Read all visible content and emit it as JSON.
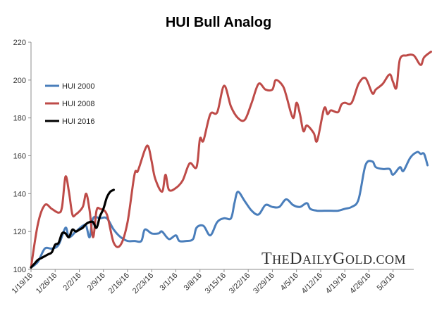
{
  "chart_data": {
    "type": "line",
    "title": "HUI Bull Analog",
    "xlabel": "",
    "ylabel": "",
    "ylim": [
      100,
      220
    ],
    "yticks": [
      100,
      120,
      140,
      160,
      180,
      200,
      220
    ],
    "xlim": [
      0,
      111
    ],
    "xticks": [
      {
        "label": "1/19/16",
        "x": 0
      },
      {
        "label": "1/26/16",
        "x": 7
      },
      {
        "label": "2/2/16",
        "x": 14
      },
      {
        "label": "2/9/16",
        "x": 21
      },
      {
        "label": "2/16/16",
        "x": 28
      },
      {
        "label": "2/23/16",
        "x": 35
      },
      {
        "label": "3/1/16",
        "x": 42
      },
      {
        "label": "3/8/16",
        "x": 49
      },
      {
        "label": "3/15/16",
        "x": 56
      },
      {
        "label": "3/22/16",
        "x": 63
      },
      {
        "label": "3/29/16",
        "x": 70
      },
      {
        "label": "4/5/16",
        "x": 77
      },
      {
        "label": "4/12/16",
        "x": 84
      },
      {
        "label": "4/19/16",
        "x": 91
      },
      {
        "label": "4/26/16",
        "x": 98
      },
      {
        "label": "5/3/16",
        "x": 105
      }
    ],
    "legend_position": "left",
    "series": [
      {
        "name": "HUI 2000",
        "color": "#4a7ebb",
        "points": [
          [
            0,
            101
          ],
          [
            2,
            104
          ],
          [
            4,
            111
          ],
          [
            6,
            111
          ],
          [
            8,
            113
          ],
          [
            10,
            122
          ],
          [
            11,
            117
          ],
          [
            13,
            120
          ],
          [
            15,
            123
          ],
          [
            16,
            123
          ],
          [
            17,
            117
          ],
          [
            18,
            127
          ],
          [
            20,
            127
          ],
          [
            22,
            127
          ],
          [
            24,
            121
          ],
          [
            26,
            117
          ],
          [
            28,
            115
          ],
          [
            30,
            115
          ],
          [
            32,
            115
          ],
          [
            33,
            121
          ],
          [
            35,
            119
          ],
          [
            37,
            119
          ],
          [
            38,
            120
          ],
          [
            40,
            116
          ],
          [
            42,
            118
          ],
          [
            43,
            115
          ],
          [
            45,
            115
          ],
          [
            47,
            116
          ],
          [
            48,
            122
          ],
          [
            50,
            123
          ],
          [
            52,
            118
          ],
          [
            54,
            125
          ],
          [
            56,
            127
          ],
          [
            58,
            127
          ],
          [
            59,
            135
          ],
          [
            60,
            141
          ],
          [
            62,
            136
          ],
          [
            64,
            131
          ],
          [
            66,
            129
          ],
          [
            68,
            134
          ],
          [
            70,
            133
          ],
          [
            72,
            133
          ],
          [
            74,
            137
          ],
          [
            76,
            134
          ],
          [
            78,
            133
          ],
          [
            80,
            135
          ],
          [
            81,
            132
          ],
          [
            83,
            131
          ],
          [
            85,
            131
          ],
          [
            87,
            131
          ],
          [
            89,
            131
          ],
          [
            91,
            132
          ],
          [
            93,
            133
          ],
          [
            95,
            137
          ],
          [
            97,
            155
          ],
          [
            99,
            157
          ],
          [
            100,
            154
          ],
          [
            102,
            153
          ],
          [
            104,
            153
          ],
          [
            105,
            150
          ],
          [
            107,
            154
          ],
          [
            108,
            152
          ],
          [
            110,
            159
          ],
          [
            112,
            162
          ],
          [
            113,
            161
          ],
          [
            114,
            161
          ],
          [
            115,
            155
          ]
        ]
      },
      {
        "name": "HUI 2008",
        "color": "#be4b48",
        "points": [
          [
            0,
            101
          ],
          [
            2,
            124
          ],
          [
            4,
            134
          ],
          [
            6,
            132
          ],
          [
            8,
            130
          ],
          [
            9,
            133
          ],
          [
            10,
            149
          ],
          [
            11,
            141
          ],
          [
            12,
            129
          ],
          [
            13,
            129
          ],
          [
            15,
            133
          ],
          [
            16,
            140
          ],
          [
            17,
            131
          ],
          [
            18,
            117
          ],
          [
            19,
            131
          ],
          [
            20,
            132
          ],
          [
            22,
            129
          ],
          [
            24,
            114
          ],
          [
            26,
            113
          ],
          [
            28,
            125
          ],
          [
            30,
            150
          ],
          [
            31,
            152
          ],
          [
            33,
            163
          ],
          [
            34,
            165
          ],
          [
            35,
            157
          ],
          [
            36,
            148
          ],
          [
            38,
            141
          ],
          [
            39,
            150
          ],
          [
            40,
            142
          ],
          [
            42,
            143
          ],
          [
            44,
            147
          ],
          [
            46,
            156
          ],
          [
            48,
            154
          ],
          [
            49,
            169
          ],
          [
            50,
            168
          ],
          [
            52,
            182
          ],
          [
            54,
            183
          ],
          [
            56,
            197
          ],
          [
            58,
            186
          ],
          [
            60,
            180
          ],
          [
            62,
            179
          ],
          [
            64,
            188
          ],
          [
            66,
            198
          ],
          [
            68,
            195
          ],
          [
            70,
            195
          ],
          [
            71,
            200
          ],
          [
            73,
            197
          ],
          [
            74,
            192
          ],
          [
            76,
            180
          ],
          [
            77,
            188
          ],
          [
            78,
            182
          ],
          [
            79,
            173
          ],
          [
            80,
            176
          ],
          [
            82,
            172
          ],
          [
            83,
            168
          ],
          [
            85,
            185
          ],
          [
            86,
            182
          ],
          [
            87,
            184
          ],
          [
            89,
            183
          ],
          [
            90,
            187
          ],
          [
            91,
            188
          ],
          [
            93,
            188
          ],
          [
            95,
            198
          ],
          [
            97,
            201
          ],
          [
            99,
            193
          ],
          [
            100,
            195
          ],
          [
            102,
            198
          ],
          [
            104,
            203
          ],
          [
            105,
            199
          ],
          [
            106,
            196
          ],
          [
            107,
            211
          ],
          [
            109,
            213
          ],
          [
            111,
            213
          ],
          [
            113,
            208
          ],
          [
            114,
            212
          ],
          [
            116,
            215
          ]
        ]
      },
      {
        "name": "HUI 2016",
        "color": "#000000",
        "points": [
          [
            0,
            101
          ],
          [
            1,
            103
          ],
          [
            2,
            105
          ],
          [
            3,
            106
          ],
          [
            4,
            107
          ],
          [
            5,
            108
          ],
          [
            6,
            109
          ],
          [
            7,
            113
          ],
          [
            8,
            114
          ],
          [
            9,
            119
          ],
          [
            10,
            119
          ],
          [
            11,
            117
          ],
          [
            12,
            121
          ],
          [
            13,
            120
          ],
          [
            14,
            121
          ],
          [
            15,
            122
          ],
          [
            16,
            124
          ],
          [
            17,
            125
          ],
          [
            18,
            125
          ],
          [
            19,
            122
          ],
          [
            20,
            128
          ],
          [
            21,
            132
          ],
          [
            22,
            138
          ],
          [
            23,
            141
          ],
          [
            24,
            142
          ]
        ]
      }
    ]
  },
  "watermark": "TheDailyGold.com"
}
